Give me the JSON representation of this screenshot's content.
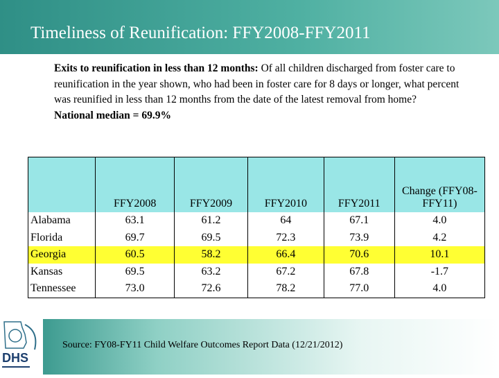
{
  "header": {
    "title": "Timeliness of Reunification: FFY2008-FFY2011"
  },
  "intro": {
    "lead": "Exits to reunification in less than 12 months:",
    "text": " Of all children discharged from foster care to reunification in the year shown, who had been in foster care for 8 days or longer, what percent was reunified in less than 12 months from the date of the latest removal from home?",
    "median": "National median = 69.9%"
  },
  "table": {
    "columns": [
      "FFY2008",
      "FFY2009",
      "FFY2010",
      "FFY2011",
      "Change (FFY08-FFY11)"
    ],
    "rows": [
      [
        "Alabama",
        "63.1",
        "61.2",
        "64",
        "67.1",
        "4.0"
      ],
      [
        "Florida",
        "69.7",
        "69.5",
        "72.3",
        "73.9",
        "4.2"
      ],
      [
        "Georgia",
        "60.5",
        "58.2",
        "66.4",
        "70.6",
        "10.1"
      ],
      [
        "Kansas",
        "69.5",
        "63.2",
        "67.2",
        "67.8",
        "-1.7"
      ],
      [
        "Tennessee",
        "73.0",
        "72.6",
        "78.2",
        "77.0",
        "4.0"
      ]
    ]
  },
  "footer": {
    "source": "Source:  FY08-FY11 Child Welfare Outcomes Report Data (12/21/2012)",
    "logo": "DHS"
  }
}
